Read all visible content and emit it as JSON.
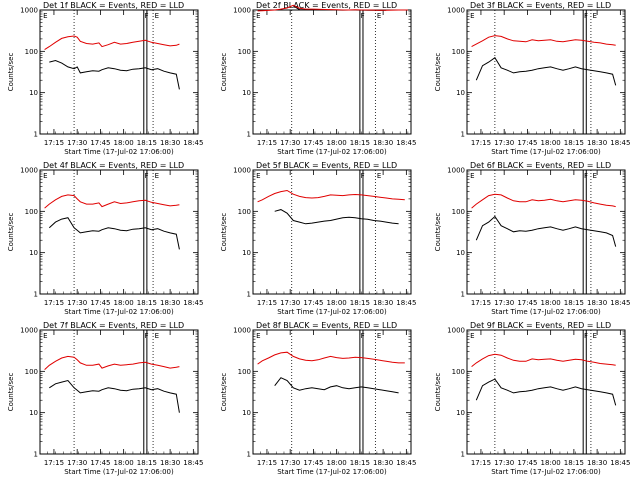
{
  "colors": {
    "events": "#000000",
    "lld": "#e00000",
    "axis": "#000000"
  },
  "shared": {
    "type": "line",
    "ylabel": "Counts/sec",
    "xlabel": "Start Time (17-Jul-02 17:06:00)",
    "yscale": "log",
    "ylim": [
      1,
      1000
    ],
    "ytick_values": [
      1,
      10,
      100,
      1000
    ],
    "ytick_labels": [
      "1",
      "10",
      "100",
      "1000"
    ],
    "xlim_minutes": [
      0,
      102
    ],
    "xtick_values_minutes": [
      9,
      24,
      39,
      54,
      69,
      84,
      99
    ],
    "xtick_labels": [
      "17:15",
      "17:30",
      "17:45",
      "18:00",
      "18:15",
      "18:30",
      "18:45"
    ],
    "marker_letters": [
      "E",
      "F",
      "E"
    ],
    "series_names": [
      "Events",
      "LLD"
    ]
  },
  "chart_data": [
    {
      "title": "Det 1f BLACK = Events, RED = LLD",
      "x": [
        3,
        6,
        10,
        14,
        18,
        22,
        24,
        26,
        30,
        34,
        38,
        40,
        44,
        48,
        52,
        56,
        60,
        64,
        68,
        72,
        76,
        80,
        84,
        88,
        90
      ],
      "series": [
        {
          "name": "Events",
          "values": [
            null,
            55,
            60,
            52,
            42,
            38,
            42,
            30,
            32,
            34,
            33,
            36,
            40,
            38,
            35,
            34,
            37,
            38,
            40,
            36,
            38,
            33,
            30,
            28,
            12
          ]
        },
        {
          "name": "LLD",
          "values": [
            110,
            130,
            165,
            205,
            225,
            235,
            220,
            175,
            155,
            150,
            160,
            130,
            145,
            165,
            150,
            155,
            165,
            175,
            185,
            165,
            155,
            145,
            135,
            140,
            150
          ]
        }
      ],
      "vlines_dotted": [
        22,
        73
      ],
      "vlines_solid": [
        67,
        69
      ]
    },
    {
      "title": "Det 2f BLACK = Events, RED = LLD",
      "x": [
        3,
        6,
        10,
        14,
        18,
        22,
        26,
        30,
        34,
        38,
        42,
        46,
        50,
        54,
        58,
        62,
        66,
        70,
        74,
        78,
        82,
        86,
        90,
        94,
        98,
        100
      ],
      "series": [
        {
          "name": "Events",
          "values": [
            null,
            null,
            null,
            null,
            null,
            null,
            1250,
            1020,
            1010,
            1020,
            1030,
            1000,
            1005,
            1000,
            995,
            1000,
            1000,
            995,
            990,
            985,
            980,
            990,
            null,
            null,
            null,
            null
          ]
        },
        {
          "name": "LLD",
          "values": [
            950,
            960,
            980,
            1000,
            1050,
            1120,
            1300,
            1100,
            1050,
            1050,
            1040,
            1030,
            1020,
            1010,
            1000,
            1000,
            1010,
            1000,
            1000,
            995,
            990,
            985,
            995,
            1000,
            1000,
            1000
          ]
        }
      ],
      "vlines_dotted": [
        25,
        79
      ],
      "vlines_solid": [
        69,
        71
      ]
    },
    {
      "title": "Det 3f BLACK = Events, RED = LLD",
      "x": [
        3,
        6,
        10,
        14,
        18,
        22,
        26,
        30,
        34,
        38,
        42,
        46,
        50,
        54,
        58,
        62,
        66,
        70,
        74,
        78,
        82,
        86,
        90,
        94,
        96
      ],
      "series": [
        {
          "name": "Events",
          "values": [
            null,
            20,
            45,
            55,
            70,
            40,
            35,
            30,
            32,
            33,
            35,
            38,
            40,
            42,
            38,
            35,
            38,
            42,
            38,
            36,
            34,
            32,
            30,
            28,
            15
          ]
        },
        {
          "name": "LLD",
          "values": [
            130,
            150,
            180,
            220,
            240,
            230,
            200,
            180,
            175,
            170,
            190,
            180,
            185,
            190,
            175,
            170,
            180,
            190,
            185,
            175,
            165,
            160,
            150,
            145,
            140
          ]
        }
      ],
      "vlines_dotted": [
        18,
        80
      ],
      "vlines_solid": [
        75,
        77
      ]
    },
    {
      "title": "Det 4f BLACK = Events, RED = LLD",
      "x": [
        3,
        6,
        10,
        14,
        18,
        22,
        24,
        26,
        30,
        34,
        38,
        40,
        44,
        48,
        52,
        56,
        60,
        64,
        68,
        72,
        76,
        80,
        84,
        88,
        90
      ],
      "series": [
        {
          "name": "Events",
          "values": [
            null,
            40,
            55,
            65,
            70,
            40,
            35,
            30,
            32,
            34,
            33,
            36,
            40,
            38,
            35,
            34,
            37,
            38,
            40,
            36,
            38,
            33,
            30,
            28,
            12
          ]
        },
        {
          "name": "LLD",
          "values": [
            120,
            150,
            190,
            230,
            250,
            240,
            200,
            170,
            150,
            150,
            160,
            130,
            150,
            170,
            155,
            160,
            170,
            180,
            185,
            165,
            155,
            145,
            135,
            140,
            145
          ]
        }
      ],
      "vlines_dotted": [
        22,
        73
      ],
      "vlines_solid": [
        67,
        69
      ]
    },
    {
      "title": "Det 5f BLACK = Events, RED = LLD",
      "x": [
        3,
        6,
        10,
        14,
        18,
        22,
        26,
        30,
        34,
        38,
        42,
        46,
        50,
        54,
        58,
        62,
        66,
        70,
        74,
        78,
        82,
        86,
        90,
        94,
        98
      ],
      "series": [
        {
          "name": "Events",
          "values": [
            null,
            null,
            null,
            100,
            110,
            90,
            60,
            55,
            50,
            52,
            55,
            58,
            60,
            65,
            70,
            72,
            70,
            66,
            64,
            60,
            58,
            55,
            52,
            50,
            null
          ]
        },
        {
          "name": "LLD",
          "values": [
            170,
            190,
            230,
            270,
            300,
            320,
            260,
            230,
            215,
            210,
            215,
            230,
            250,
            245,
            240,
            250,
            255,
            250,
            240,
            230,
            220,
            210,
            200,
            195,
            190
          ]
        }
      ],
      "vlines_dotted": [
        25,
        79
      ],
      "vlines_solid": [
        69,
        71
      ]
    },
    {
      "title": "Det 6f BLACK = Events, RED = LLD",
      "x": [
        3,
        6,
        10,
        14,
        18,
        22,
        26,
        30,
        34,
        38,
        42,
        46,
        50,
        54,
        58,
        62,
        66,
        70,
        74,
        78,
        82,
        86,
        90,
        94,
        96
      ],
      "series": [
        {
          "name": "Events",
          "values": [
            null,
            20,
            45,
            55,
            75,
            45,
            38,
            32,
            34,
            33,
            35,
            38,
            40,
            42,
            38,
            35,
            38,
            42,
            38,
            36,
            34,
            32,
            30,
            26,
            14
          ]
        },
        {
          "name": "LLD",
          "values": [
            120,
            150,
            190,
            240,
            260,
            250,
            210,
            180,
            170,
            170,
            190,
            180,
            185,
            195,
            180,
            170,
            180,
            190,
            185,
            175,
            160,
            150,
            140,
            135,
            130
          ]
        }
      ],
      "vlines_dotted": [
        18,
        80
      ],
      "vlines_solid": [
        75,
        77
      ]
    },
    {
      "title": "Det 7f BLACK = Events, RED = LLD",
      "x": [
        3,
        6,
        10,
        14,
        18,
        22,
        24,
        26,
        30,
        34,
        38,
        40,
        44,
        48,
        52,
        56,
        60,
        64,
        68,
        72,
        76,
        80,
        84,
        88,
        90
      ],
      "series": [
        {
          "name": "Events",
          "values": [
            null,
            40,
            50,
            55,
            60,
            40,
            35,
            30,
            32,
            34,
            33,
            36,
            40,
            38,
            35,
            34,
            37,
            38,
            40,
            36,
            38,
            33,
            30,
            28,
            10
          ]
        },
        {
          "name": "LLD",
          "values": [
            110,
            140,
            175,
            210,
            230,
            220,
            190,
            160,
            140,
            140,
            150,
            120,
            135,
            150,
            140,
            145,
            150,
            160,
            165,
            150,
            140,
            130,
            120,
            125,
            130
          ]
        }
      ],
      "vlines_dotted": [
        22,
        73
      ],
      "vlines_solid": [
        67,
        69
      ]
    },
    {
      "title": "Det 8f BLACK = Events, RED = LLD",
      "x": [
        3,
        6,
        10,
        14,
        18,
        22,
        26,
        30,
        34,
        38,
        42,
        46,
        50,
        54,
        58,
        62,
        66,
        70,
        74,
        78,
        82,
        86,
        90,
        94,
        98
      ],
      "series": [
        {
          "name": "Events",
          "values": [
            null,
            null,
            null,
            45,
            70,
            60,
            40,
            35,
            38,
            40,
            38,
            36,
            42,
            45,
            40,
            38,
            40,
            42,
            40,
            38,
            36,
            34,
            32,
            30,
            null
          ]
        },
        {
          "name": "LLD",
          "values": [
            150,
            180,
            210,
            250,
            280,
            290,
            230,
            200,
            185,
            180,
            190,
            210,
            230,
            215,
            205,
            210,
            220,
            215,
            205,
            195,
            185,
            175,
            165,
            160,
            160
          ]
        }
      ],
      "vlines_dotted": [
        25,
        79
      ],
      "vlines_solid": [
        69,
        71
      ]
    },
    {
      "title": "Det 9f BLACK = Events, RED = LLD",
      "x": [
        3,
        6,
        10,
        14,
        18,
        22,
        26,
        30,
        34,
        38,
        42,
        46,
        50,
        54,
        58,
        62,
        66,
        70,
        74,
        78,
        82,
        86,
        90,
        94,
        96
      ],
      "series": [
        {
          "name": "Events",
          "values": [
            null,
            20,
            45,
            55,
            65,
            40,
            35,
            30,
            32,
            33,
            35,
            38,
            40,
            42,
            38,
            35,
            38,
            42,
            38,
            36,
            34,
            32,
            30,
            28,
            15
          ]
        },
        {
          "name": "LLD",
          "values": [
            130,
            160,
            200,
            240,
            260,
            245,
            210,
            185,
            175,
            175,
            200,
            190,
            195,
            200,
            185,
            175,
            185,
            195,
            190,
            175,
            165,
            155,
            150,
            145,
            140
          ]
        }
      ],
      "vlines_dotted": [
        18,
        80
      ],
      "vlines_solid": [
        75,
        77
      ]
    }
  ]
}
